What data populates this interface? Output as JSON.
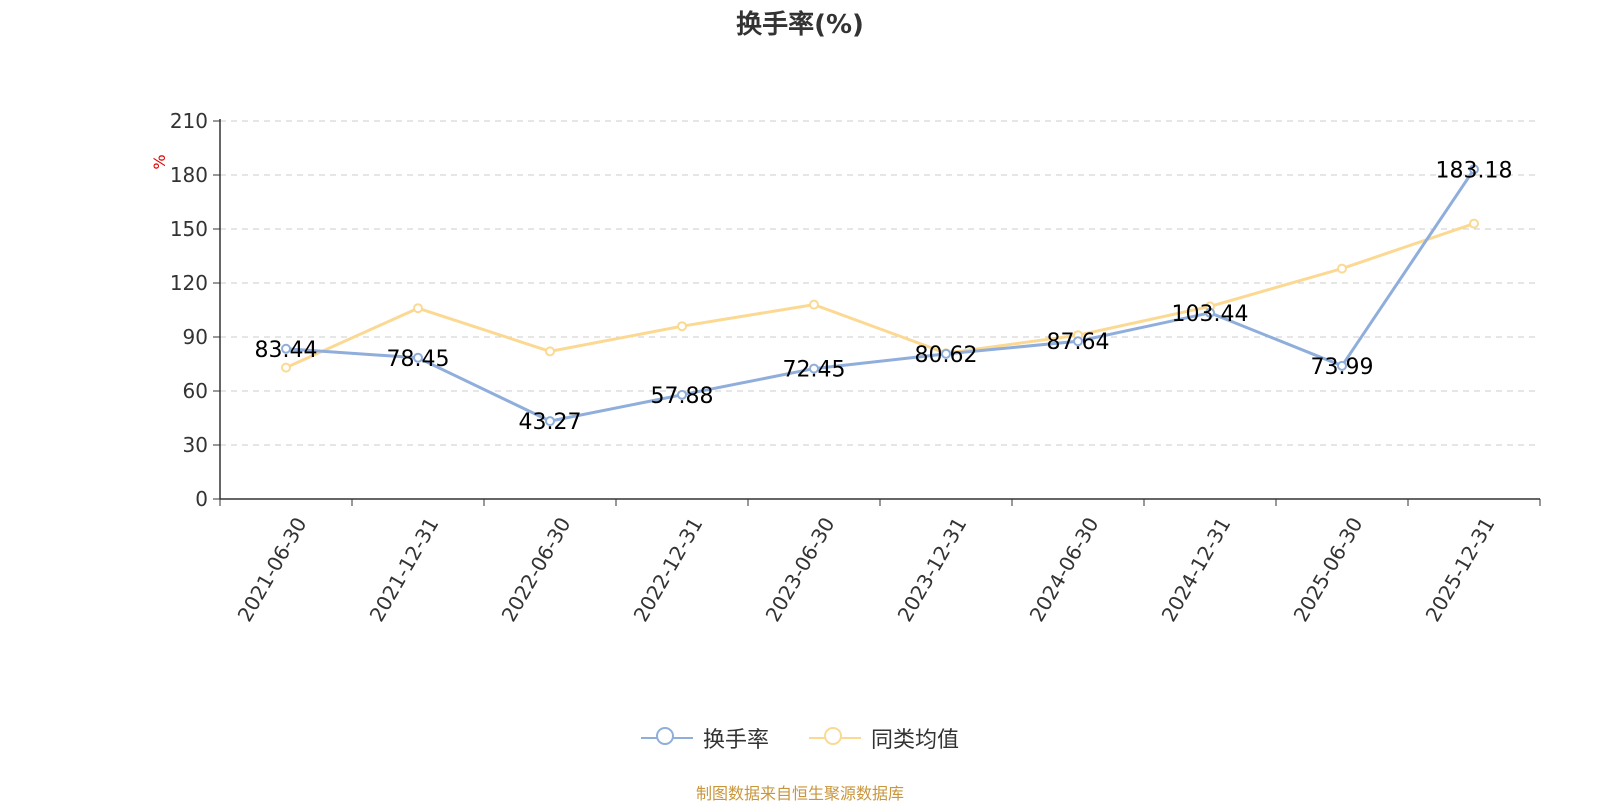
{
  "chart_data": {
    "type": "line",
    "title": "换手率(%)",
    "ylabel": "%",
    "ylim": [
      0,
      210
    ],
    "yticks": [
      0,
      30,
      60,
      90,
      120,
      150,
      180,
      210
    ],
    "categories": [
      "2021-06-30",
      "2021-12-31",
      "2022-06-30",
      "2022-12-31",
      "2023-06-30",
      "2023-12-31",
      "2024-06-30",
      "2024-12-31",
      "2025-06-30",
      "2025-12-31"
    ],
    "series": [
      {
        "name": "换手率",
        "color": "#8FAEDB",
        "values": [
          83.44,
          78.45,
          43.27,
          57.88,
          72.45,
          80.62,
          87.64,
          103.44,
          73.99,
          183.18
        ],
        "labels": [
          "83.44",
          "78.45",
          "43.27",
          "57.88",
          "72.45",
          "80.62",
          "87.64",
          "103.44",
          "73.99",
          "183.18"
        ]
      },
      {
        "name": "同类均值",
        "color": "#FCD993",
        "values": [
          73,
          106,
          82,
          96,
          108,
          81,
          91,
          107,
          128,
          153
        ]
      }
    ],
    "grid": true,
    "legend": "bottom"
  },
  "source": "制图数据来自恒生聚源数据库",
  "colors": {
    "ylabel": "#e00000",
    "source": "#c8963c",
    "grid": "#cccccc",
    "axis": "#333333"
  }
}
